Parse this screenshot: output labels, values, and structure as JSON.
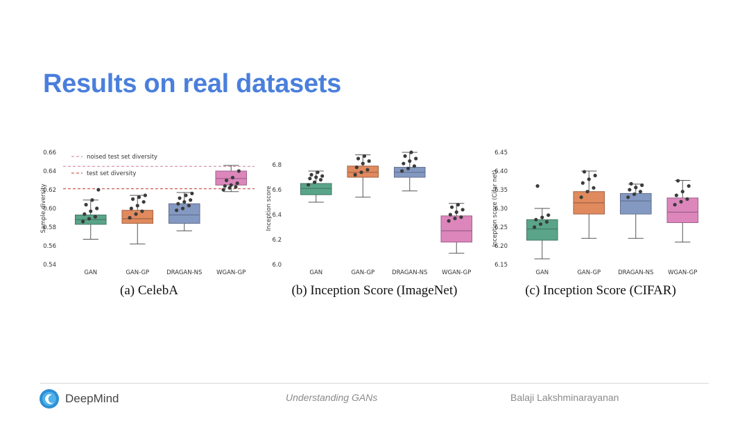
{
  "slide": {
    "title": "Results on real datasets",
    "footer": {
      "brand": "DeepMind",
      "center": "Understanding GANs",
      "author": "Balaji Lakshminarayanan"
    },
    "colors": {
      "title": "#4a7fdc",
      "gan": "#5aa58a",
      "gan_gp": "#e08a5e",
      "dragan_ns": "#8499c2",
      "wgan_gp": "#dc86bc"
    }
  },
  "chart_data": [
    {
      "type": "box",
      "caption": "(a)  CelebA",
      "ylabel": "Sample diversity",
      "categories": [
        "GAN",
        "GAN-GP",
        "DRAGAN-NS",
        "WGAN-GP"
      ],
      "ylim": [
        0.54,
        0.66
      ],
      "yticks": [
        "0.54",
        "0.56",
        "0.58",
        "0.60",
        "0.62",
        "0.64",
        "0.66"
      ],
      "boxes": [
        {
          "whisker_low": 0.567,
          "q1": 0.583,
          "median": 0.588,
          "q3": 0.593,
          "whisker_high": 0.609
        },
        {
          "whisker_low": 0.562,
          "q1": 0.584,
          "median": 0.589,
          "q3": 0.598,
          "whisker_high": 0.614
        },
        {
          "whisker_low": 0.576,
          "q1": 0.584,
          "median": 0.593,
          "q3": 0.605,
          "whisker_high": 0.617
        },
        {
          "whisker_low": 0.618,
          "q1": 0.625,
          "median": 0.632,
          "q3": 0.64,
          "whisker_high": 0.646
        }
      ],
      "points": [
        [
          0.586,
          0.589,
          0.591,
          0.594,
          0.597,
          0.6,
          0.604,
          0.609,
          0.62
        ],
        [
          0.59,
          0.594,
          0.597,
          0.6,
          0.603,
          0.607,
          0.61,
          0.612,
          0.614
        ],
        [
          0.598,
          0.6,
          0.603,
          0.605,
          0.607,
          0.609,
          0.611,
          0.614,
          0.616
        ],
        [
          0.62,
          0.622,
          0.623,
          0.624,
          0.625,
          0.627,
          0.63,
          0.633,
          0.64
        ]
      ],
      "reference_lines": [
        {
          "label": "noised test set diversity",
          "value": 0.645,
          "color": "#d27a90"
        },
        {
          "label": "test set diversity",
          "value": 0.621,
          "color": "#c0392b"
        }
      ]
    },
    {
      "type": "box",
      "caption": "(b)  Inception Score (ImageNet)",
      "ylabel": "Inception score",
      "categories": [
        "GAN",
        "GAN-GP",
        "DRAGAN-NS",
        "WGAN-GP"
      ],
      "ylim": [
        6.0,
        6.9
      ],
      "yticks": [
        "6.0",
        "6.2",
        "6.4",
        "6.6",
        "6.8"
      ],
      "boxes": [
        {
          "whisker_low": 6.5,
          "q1": 6.56,
          "median": 6.61,
          "q3": 6.65,
          "whisker_high": 6.75
        },
        {
          "whisker_low": 6.54,
          "q1": 6.7,
          "median": 6.74,
          "q3": 6.79,
          "whisker_high": 6.88
        },
        {
          "whisker_low": 6.59,
          "q1": 6.7,
          "median": 6.74,
          "q3": 6.78,
          "whisker_high": 6.9
        },
        {
          "whisker_low": 6.09,
          "q1": 6.18,
          "median": 6.27,
          "q3": 6.39,
          "whisker_high": 6.49
        }
      ],
      "points": [
        [
          6.64,
          6.66,
          6.68,
          6.69,
          6.7,
          6.71,
          6.72,
          6.74
        ],
        [
          6.72,
          6.74,
          6.76,
          6.78,
          6.81,
          6.83,
          6.85,
          6.87
        ],
        [
          6.75,
          6.77,
          6.79,
          6.81,
          6.83,
          6.85,
          6.87,
          6.9
        ],
        [
          6.35,
          6.37,
          6.38,
          6.4,
          6.42,
          6.44,
          6.46,
          6.48
        ]
      ],
      "reference_lines": []
    },
    {
      "type": "box",
      "caption": "(c)  Inception Score (CIFAR)",
      "ylabel": "Inception score (Cifar net)",
      "categories": [
        "GAN",
        "GAN-GP",
        "DRAGAN-NS",
        "WGAN-GP"
      ],
      "ylim": [
        6.15,
        6.45
      ],
      "yticks": [
        "6.15",
        "6.20",
        "6.25",
        "6.30",
        "6.35",
        "6.40",
        "6.45"
      ],
      "boxes": [
        {
          "whisker_low": 6.165,
          "q1": 6.215,
          "median": 6.245,
          "q3": 6.27,
          "whisker_high": 6.3
        },
        {
          "whisker_low": 6.22,
          "q1": 6.285,
          "median": 6.315,
          "q3": 6.345,
          "whisker_high": 6.4
        },
        {
          "whisker_low": 6.22,
          "q1": 6.285,
          "median": 6.32,
          "q3": 6.34,
          "whisker_high": 6.365
        },
        {
          "whisker_low": 6.21,
          "q1": 6.262,
          "median": 6.29,
          "q3": 6.328,
          "whisker_high": 6.375
        }
      ],
      "points": [
        [
          6.25,
          6.258,
          6.264,
          6.27,
          6.276,
          6.282,
          6.36
        ],
        [
          6.33,
          6.345,
          6.355,
          6.368,
          6.378,
          6.388,
          6.398
        ],
        [
          6.33,
          6.338,
          6.345,
          6.35,
          6.356,
          6.362,
          6.366
        ],
        [
          6.31,
          6.318,
          6.325,
          6.335,
          6.345,
          6.36,
          6.374
        ]
      ],
      "reference_lines": []
    }
  ]
}
